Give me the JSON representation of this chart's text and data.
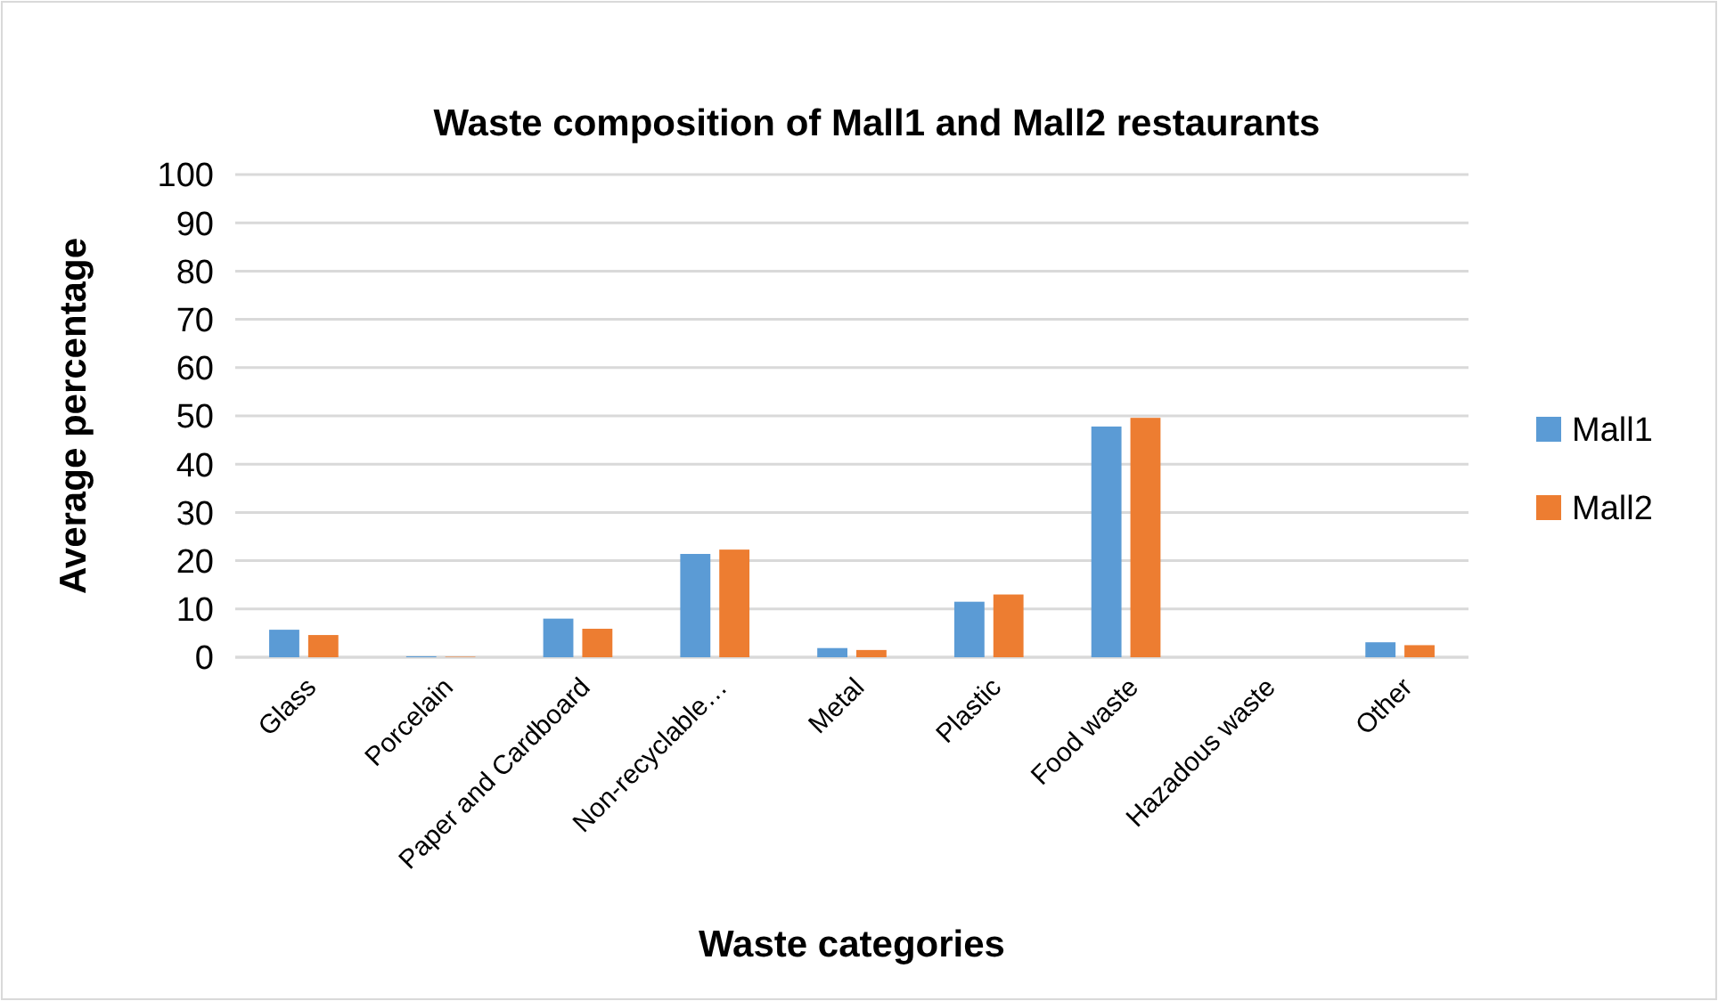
{
  "chart_data": {
    "type": "bar",
    "title": "Waste composition of Mall1 and Mall2 restaurants",
    "xlabel": "Waste categories",
    "ylabel": "Average percentage",
    "categories": [
      "Glass",
      "Porcelain",
      "Paper and Cardboard",
      "Non-recyclable…",
      "Metal",
      "Plastic",
      "Food waste",
      "Hazadous waste",
      "Other"
    ],
    "series": [
      {
        "name": "Mall1",
        "color": "#5b9bd5",
        "values": [
          5.7,
          0.2,
          8.0,
          21.4,
          1.9,
          11.5,
          47.8,
          0,
          3.1
        ]
      },
      {
        "name": "Mall2",
        "color": "#ed7d31",
        "values": [
          4.6,
          0.1,
          5.9,
          22.3,
          1.5,
          13.0,
          49.6,
          0,
          2.5
        ]
      }
    ],
    "ylim": [
      0,
      100
    ],
    "yticks": [
      0,
      10,
      20,
      30,
      40,
      50,
      60,
      70,
      80,
      90,
      100
    ],
    "grid": "y",
    "legend": "right"
  }
}
